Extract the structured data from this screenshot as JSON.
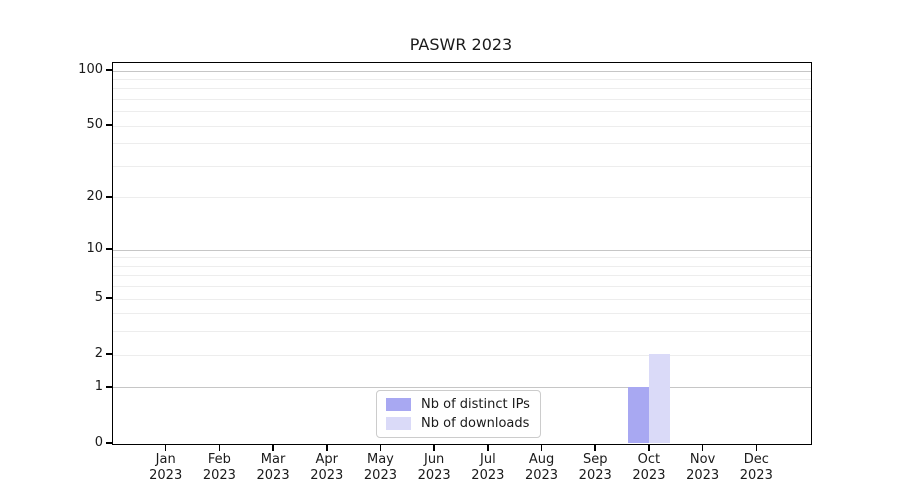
{
  "chart_data": {
    "type": "bar",
    "title": "PASWR 2023",
    "x_axis": {
      "months": [
        "Jan",
        "Feb",
        "Mar",
        "Apr",
        "May",
        "Jun",
        "Jul",
        "Aug",
        "Sep",
        "Oct",
        "Nov",
        "Dec"
      ],
      "year": "2023"
    },
    "y_axis": {
      "scale": "log1p",
      "tick_values": [
        0,
        1,
        2,
        5,
        10,
        20,
        50,
        100
      ],
      "max_value": 110,
      "grid_major_values": [
        1,
        10,
        100
      ],
      "grid_minor_values": [
        2,
        3,
        4,
        5,
        6,
        7,
        8,
        9,
        20,
        30,
        40,
        50,
        60,
        70,
        80,
        90
      ]
    },
    "series": [
      {
        "name": "Nb of distinct IPs",
        "color": "#a8a8f2",
        "values": [
          0,
          0,
          0,
          0,
          0,
          0,
          0,
          0,
          0,
          1,
          0,
          0
        ]
      },
      {
        "name": "Nb of downloads",
        "color": "#dadaf8",
        "values": [
          0,
          0,
          0,
          0,
          0,
          0,
          0,
          0,
          0,
          2,
          0,
          0
        ]
      }
    ],
    "legend": {
      "position": "bottom-center-inside",
      "entries": [
        "Nb of distinct IPs",
        "Nb of downloads"
      ]
    },
    "grid": true,
    "colors": {
      "grid_major": "#c6c6c6",
      "grid_minor": "#ededed",
      "spine": "#000000",
      "text": "#1a1a1a",
      "background": "#ffffff"
    }
  }
}
